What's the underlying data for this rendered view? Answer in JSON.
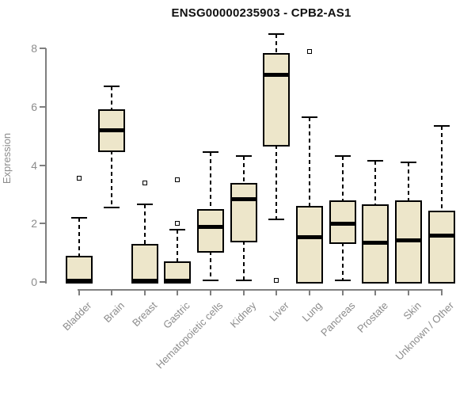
{
  "title": "ENSG00000235903 - CPB2-AS1",
  "chart_data": {
    "type": "boxplot",
    "title": "ENSG00000235903 - CPB2-AS1",
    "xlabel": "",
    "ylabel": "Expression",
    "ylim": [
      0,
      8.5
    ],
    "yticks": [
      0,
      2,
      4,
      6,
      8
    ],
    "grid": false,
    "legend": "none",
    "box_fill": "#EDE6CA",
    "box_border": "#000000",
    "median_color": "#000000",
    "axis_color": "#7f7f7f",
    "label_color": "#8c8c8c",
    "title_color": "#111111",
    "categories": [
      "Bladder",
      "Brain",
      "Breast",
      "Gastric",
      "Hematopoietic cells",
      "Kidney",
      "Liver",
      "Lung",
      "Pancreas",
      "Prostate",
      "Skin",
      "Unknown / Other"
    ],
    "series": [
      {
        "name": "Bladder",
        "whisker_low": 0,
        "q1": 0,
        "median": 0.05,
        "q3": 0.9,
        "whisker_high": 2.2,
        "outliers": [
          3.55
        ]
      },
      {
        "name": "Brain",
        "whisker_low": 2.55,
        "q1": 4.5,
        "median": 5.2,
        "q3": 5.9,
        "whisker_high": 6.7,
        "outliers": []
      },
      {
        "name": "Breast",
        "whisker_low": 0,
        "q1": 0,
        "median": 0.05,
        "q3": 1.3,
        "whisker_high": 2.65,
        "outliers": [
          3.4
        ]
      },
      {
        "name": "Gastric",
        "whisker_low": 0,
        "q1": 0,
        "median": 0.05,
        "q3": 0.7,
        "whisker_high": 1.8,
        "outliers": [
          3.5,
          2.0
        ]
      },
      {
        "name": "Hematopoietic cells",
        "whisker_low": 0.05,
        "q1": 1.05,
        "median": 1.9,
        "q3": 2.5,
        "whisker_high": 4.45,
        "outliers": []
      },
      {
        "name": "Kidney",
        "whisker_low": 0.05,
        "q1": 1.4,
        "median": 2.85,
        "q3": 3.4,
        "whisker_high": 4.3,
        "outliers": []
      },
      {
        "name": "Liver",
        "whisker_low": 2.15,
        "q1": 4.7,
        "median": 7.1,
        "q3": 7.85,
        "whisker_high": 8.5,
        "outliers": [
          0.05
        ]
      },
      {
        "name": "Lung",
        "whisker_low": 0,
        "q1": 0,
        "median": 1.55,
        "q3": 2.6,
        "whisker_high": 5.65,
        "outliers": [
          7.9
        ]
      },
      {
        "name": "Pancreas",
        "whisker_low": 0.05,
        "q1": 1.35,
        "median": 2.0,
        "q3": 2.8,
        "whisker_high": 4.3,
        "outliers": []
      },
      {
        "name": "Prostate",
        "whisker_low": 0,
        "q1": 0,
        "median": 1.35,
        "q3": 2.65,
        "whisker_high": 4.15,
        "outliers": []
      },
      {
        "name": "Skin",
        "whisker_low": 0,
        "q1": 0,
        "median": 1.45,
        "q3": 2.8,
        "whisker_high": 4.1,
        "outliers": []
      },
      {
        "name": "Unknown / Other",
        "whisker_low": 0,
        "q1": 0,
        "median": 1.6,
        "q3": 2.45,
        "whisker_high": 5.35,
        "outliers": []
      }
    ]
  }
}
